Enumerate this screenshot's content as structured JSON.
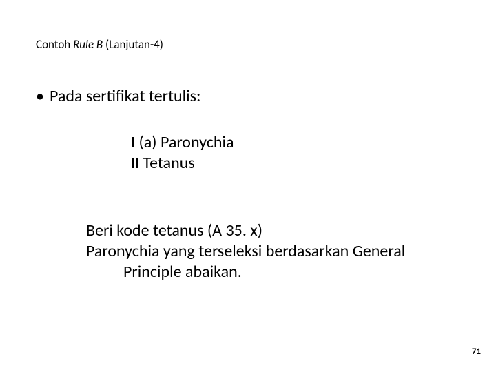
{
  "title_prefix": "Contoh ",
  "title_rule": "Rule B",
  "title_suffix": " (Lanjutan-4)",
  "bullet_dot": "•",
  "bullet_text": "Pada sertifikat tertulis:",
  "cert_line1": "I   (a)   Paronychia",
  "cert_line2": "II      Tetanus",
  "note_line1": "Beri kode tetanus (A 35. x)",
  "note_line2a": "Paronychia yang terseleksi berdasarkan General",
  "note_line2b": "Principle abaikan.",
  "page_number": "71",
  "colors": {
    "background": "#ffffff",
    "text": "#000000"
  },
  "fontsizes": {
    "title": 17,
    "body": 24,
    "pagenum": 13
  }
}
